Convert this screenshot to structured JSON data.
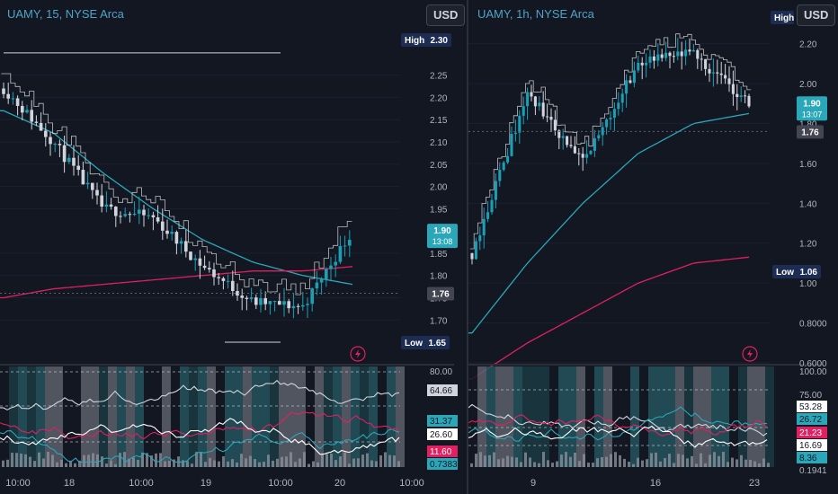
{
  "colors": {
    "background": "#131722",
    "up": "#089981",
    "down": "#f23645",
    "candle_up": "#1b9fb5",
    "candle_down": "#d1d4dc",
    "ma_fast": "#2aa7b8",
    "ma_slow": "#e02060",
    "title": "#4fa3c7",
    "label_dark": "#1c2c52"
  },
  "left": {
    "title": "UAMY, 15, NYSE Arca",
    "currency": "USD",
    "price_ticks": [
      "2.25",
      "2.20",
      "2.15",
      "2.10",
      "2.05",
      "2.00",
      "1.95",
      "1.85",
      "1.80",
      "1.75",
      "1.70"
    ],
    "high_label": "High",
    "high_value": "2.30",
    "low_label": "Low",
    "low_value": "1.65",
    "last_price": "1.90",
    "countdown": "13:08",
    "ref_price": "1.76",
    "osc_ticks": [
      "80.00",
      "64.66",
      "31.37",
      "26.60",
      "11.60",
      "0.7383"
    ],
    "time_labels": [
      "10:00",
      "18",
      "10:00",
      "19",
      "10:00",
      "20",
      "10:00"
    ],
    "marker": "T"
  },
  "right": {
    "title": "UAMY, 1h, NYSE Arca",
    "currency": "USD",
    "price_ticks": [
      "2.20",
      "2.00",
      "1.80",
      "1.60",
      "1.40",
      "1.20",
      "1.00",
      "0.8000",
      "0.6000"
    ],
    "high_label": "High",
    "low_label": "Low",
    "low_value": "1.06",
    "last_price": "1.90",
    "countdown": "13:07",
    "ref_price": "1.76",
    "osc_ticks": [
      "100.00",
      "75.00",
      "53.28",
      "26.72",
      "21.23",
      "16.69",
      "8.36",
      "0.1941"
    ],
    "time_labels": [
      "9",
      "16",
      "23"
    ]
  },
  "chart_data": [
    {
      "type": "line",
      "title": "UAMY, 15, NYSE Arca",
      "xlabel": "",
      "ylabel": "",
      "ylim": [
        1.64,
        2.33
      ],
      "x": [
        "18 10:00",
        "18 13:00",
        "18 16:00",
        "19 10:00",
        "19 13:00",
        "19 16:00",
        "20 10:00",
        "20 13:00"
      ],
      "series": [
        {
          "values": [
            2.22,
            2.1,
            1.95,
            1.93,
            1.82,
            1.74,
            1.73,
            1.9
          ]
        },
        {
          "values": [
            2.17,
            2.12,
            2.03,
            1.95,
            1.88,
            1.83,
            1.8,
            1.78
          ]
        },
        {
          "values": [
            1.75,
            1.77,
            1.78,
            1.79,
            1.8,
            1.81,
            1.81,
            1.82
          ]
        }
      ],
      "high": 2.3,
      "low": 1.65,
      "last": 1.9
    },
    {
      "type": "line",
      "title": "UAMY, 1h, NYSE Arca",
      "xlabel": "",
      "ylabel": "",
      "ylim": [
        0.6,
        2.32
      ],
      "x": [
        "6",
        "9",
        "12",
        "16",
        "19",
        "20"
      ],
      "series": [
        {
          "values": [
            1.15,
            1.95,
            1.6,
            2.1,
            2.15,
            1.9
          ]
        },
        {
          "values": [
            0.75,
            1.1,
            1.4,
            1.65,
            1.8,
            1.85
          ]
        },
        {
          "values": [
            0.52,
            0.7,
            0.85,
            1.0,
            1.1,
            1.13
          ]
        }
      ],
      "high": 2.3,
      "low": 1.06,
      "last": 1.9
    }
  ]
}
